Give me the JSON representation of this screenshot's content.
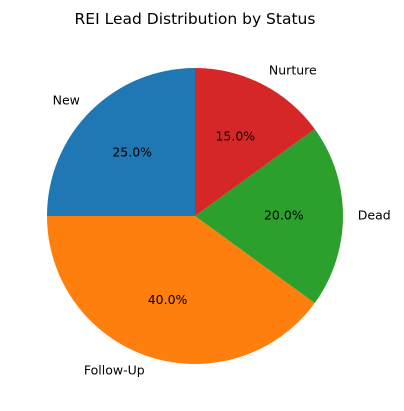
{
  "chart_data": {
    "type": "pie",
    "title": "REI Lead Distribution by Status",
    "slices": [
      {
        "label": "New",
        "value": 25.0,
        "pct_label": "25.0%",
        "color": "#1f77b4"
      },
      {
        "label": "Follow-Up",
        "value": 40.0,
        "pct_label": "40.0%",
        "color": "#ff7f0e"
      },
      {
        "label": "Dead",
        "value": 20.0,
        "pct_label": "20.0%",
        "color": "#2ca02c"
      },
      {
        "label": "Nurture",
        "value": 15.0,
        "pct_label": "15.0%",
        "color": "#d62728"
      }
    ],
    "start_angle_deg": 90,
    "direction": "counterclockwise"
  }
}
